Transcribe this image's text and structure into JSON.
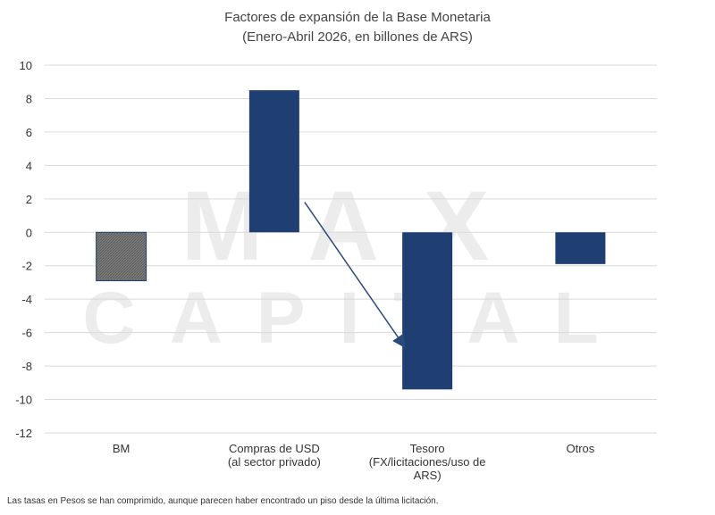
{
  "watermark": {
    "line1": "MAX",
    "line2": "CAPITAL"
  },
  "footnote": "Las tasas en Pesos se han comprimido, aunque parecen haber encontrado un piso desde la última licitación.",
  "colors": {
    "bm": "#7a7a7a",
    "others": "#1f3f73",
    "grid": "#d9d9d9",
    "arrow": "#2a4a7a"
  },
  "chart_data": {
    "type": "bar",
    "title": "Factores de expansión de la Base Monetaria",
    "subtitle": "(Enero-Abril 2026, en billones de ARS)",
    "categories": [
      [
        "BM"
      ],
      [
        "Compras de USD",
        "(al sector privado)"
      ],
      [
        "Tesoro",
        "(FX/licitaciones/uso de",
        "ARS)"
      ],
      [
        "Otros"
      ]
    ],
    "values": [
      -2.9,
      8.5,
      -9.4,
      -1.9
    ],
    "yticks": [
      10,
      8,
      6,
      4,
      2,
      0,
      -2,
      -4,
      -6,
      -8,
      -10,
      -12
    ],
    "ylim": [
      -12,
      10
    ],
    "grid": true,
    "annotation": "arrow from Compras de USD bar to Tesoro bar"
  }
}
